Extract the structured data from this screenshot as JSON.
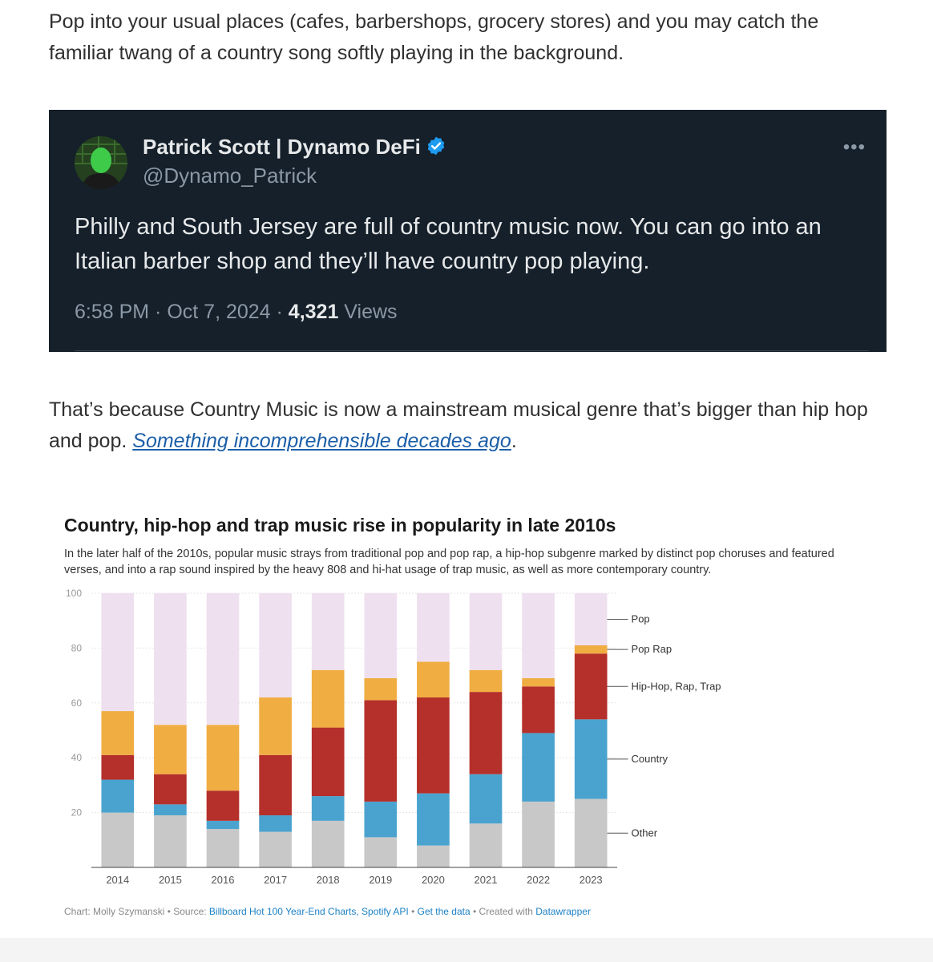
{
  "article": {
    "para1": "Pop into your usual places (cafes, barbershops, grocery stores) and you may catch the familiar twang of a country song softly playing in the background.",
    "para2_text": "That’s because Country Music is now a mainstream musical genre that’s bigger than hip hop and pop.",
    "para2_link": "Something incomprehensible decades ago",
    "para2_end": "."
  },
  "tweet": {
    "name": "Patrick Scott | Dynamo DeFi",
    "handle": "@Dynamo_Patrick",
    "more": "•••",
    "text": "Philly and South Jersey are full of country music now. You can go into an Italian barber shop and they’ll have country pop playing.",
    "time": "6:58 PM",
    "sep1": " · ",
    "date": "Oct 7, 2024",
    "sep2": " · ",
    "views_count": "4,321",
    "views_label": " Views",
    "colors": {
      "bg": "#15202b",
      "verified": "#1d9bf0"
    }
  },
  "chart_data": {
    "type": "bar",
    "stacked": true,
    "title": "Country, hip-hop and trap music rise in popularity in late 2010s",
    "subtitle": "In the later half of the 2010s, popular music strays from traditional pop and pop rap, a hip-hop subgenre marked by distinct pop choruses and featured verses, and into a rap sound inspired by the heavy 808 and hi-hat usage of trap music, as well as more contemporary country.",
    "categories": [
      "2014",
      "2015",
      "2016",
      "2017",
      "2018",
      "2019",
      "2020",
      "2021",
      "2022",
      "2023"
    ],
    "ylim": [
      0,
      100
    ],
    "yticks": [
      "100",
      "80",
      "60",
      "40",
      "20"
    ],
    "series": [
      {
        "name": "Other",
        "color": "#c8c8c8",
        "values": [
          20,
          19,
          14,
          13,
          17,
          11,
          8,
          16,
          24,
          25
        ]
      },
      {
        "name": "Country",
        "color": "#4aa3cf",
        "values": [
          12,
          4,
          3,
          6,
          9,
          13,
          19,
          18,
          25,
          29
        ]
      },
      {
        "name": "Hip-Hop, Rap, Trap",
        "color": "#b5302a",
        "values": [
          9,
          11,
          11,
          22,
          25,
          37,
          35,
          30,
          17,
          24
        ]
      },
      {
        "name": "Pop Rap",
        "color": "#f0ad42",
        "values": [
          16,
          18,
          24,
          21,
          21,
          8,
          13,
          8,
          3,
          3
        ]
      },
      {
        "name": "Pop",
        "color": "#efe0f0",
        "values": [
          43,
          48,
          48,
          38,
          28,
          31,
          25,
          28,
          31,
          19
        ]
      }
    ],
    "legend_order": [
      "Pop",
      "Pop Rap",
      "Hip-Hop, Rap, Trap",
      "Country",
      "Other"
    ],
    "footer": {
      "credit": "Chart: Molly Szymanski • Source: ",
      "source": "Billboard Hot 100 Year-End Charts, Spotify API",
      "sep1": " • ",
      "get_data": "Get the data",
      "sep2": " • Created with ",
      "tool": "Datawrapper"
    }
  }
}
